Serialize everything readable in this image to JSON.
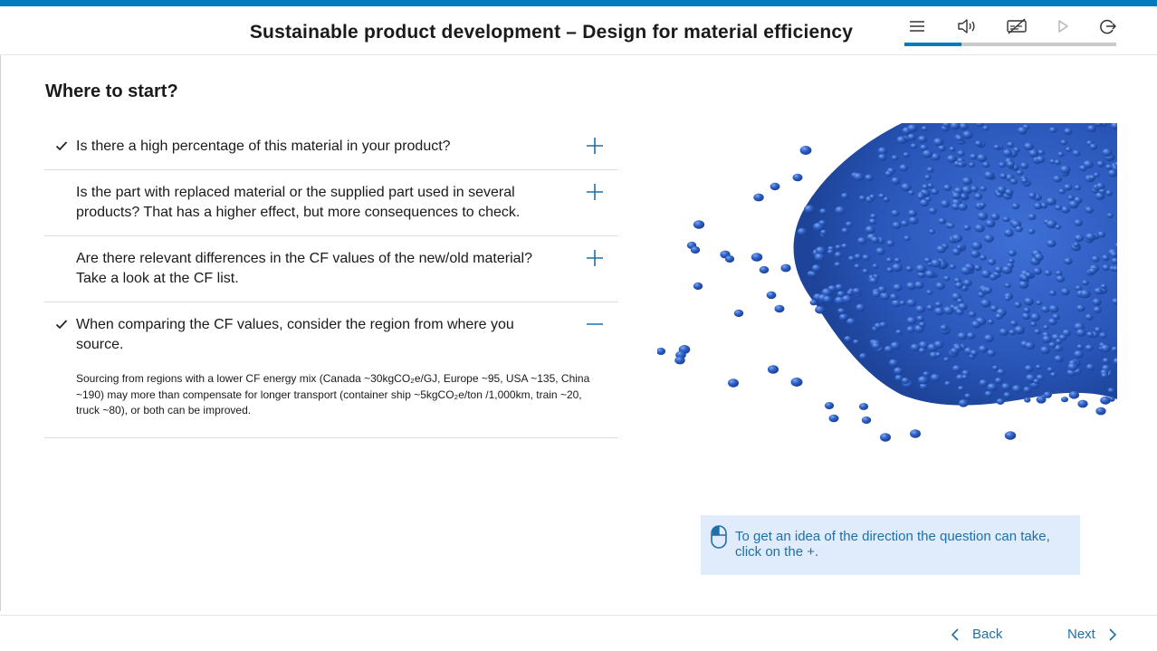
{
  "header": {
    "title": "Sustainable product development – Design for material efficiency",
    "tools": [
      {
        "icon": "menu-icon"
      },
      {
        "icon": "speaker-icon"
      },
      {
        "icon": "subtitles-off-icon"
      },
      {
        "icon": "play-icon"
      },
      {
        "icon": "exit-icon"
      }
    ],
    "progress_fraction": 0.27,
    "accent_color": "#007bc0"
  },
  "main": {
    "section_title": "Where to start?",
    "accordion": [
      {
        "checked": true,
        "question": "Is there a high percentage of this material in your product?",
        "state": "collapsed"
      },
      {
        "checked": false,
        "question": "Is the part with replaced material or the supplied part used in several products? That has a higher effect, but more consequences to check.",
        "state": "collapsed"
      },
      {
        "checked": false,
        "question": "Are there relevant differences in the CF values of the new/old material? Take a look at the CF list.",
        "state": "collapsed"
      },
      {
        "checked": true,
        "question": "When comparing the CF values, consider the region from where you source.",
        "state": "expanded",
        "answer": "Sourcing from regions with a lower CF energy mix (Canada ~30kgCO₂e/GJ, Europe ~95, USA ~135, China ~190) may more than compensate for longer transport (container ship ~5kgCO₂e/ton /1,000km, train ~20, truck ~80), or both can be improved."
      }
    ],
    "image_subject": "blue-plastic-granules"
  },
  "hint": {
    "icon": "mouse-icon",
    "text": "To get an idea of the direction the question can take, click on the +."
  },
  "footer": {
    "back_label": "Back",
    "next_label": "Next"
  }
}
